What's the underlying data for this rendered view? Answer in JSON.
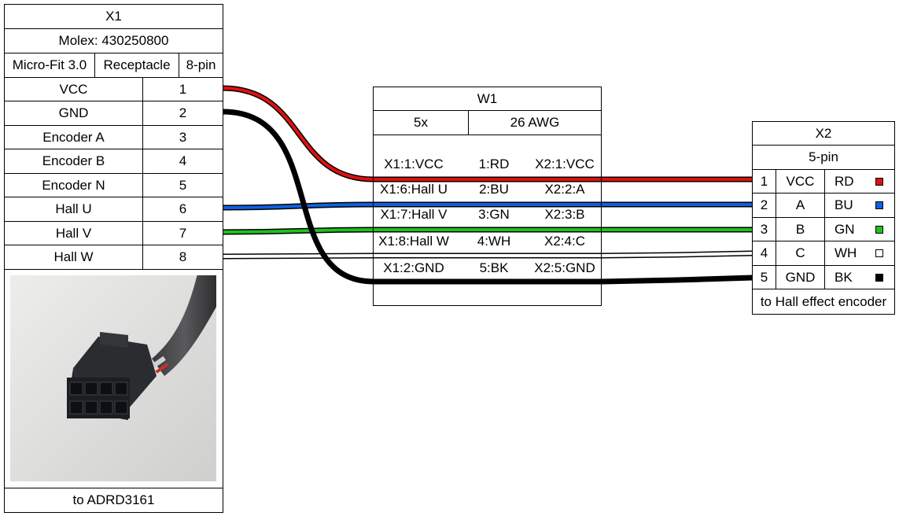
{
  "x1": {
    "title": "X1",
    "part": "Molex: 430250800",
    "series": "Micro-Fit 3.0",
    "type": "Receptacle",
    "pincount": "8-pin",
    "pins": [
      {
        "label": "VCC",
        "num": "1"
      },
      {
        "label": "GND",
        "num": "2"
      },
      {
        "label": "Encoder A",
        "num": "3"
      },
      {
        "label": "Encoder B",
        "num": "4"
      },
      {
        "label": "Encoder N",
        "num": "5"
      },
      {
        "label": "Hall U",
        "num": "6"
      },
      {
        "label": "Hall V",
        "num": "7"
      },
      {
        "label": "Hall W",
        "num": "8"
      }
    ],
    "note": "to ADRD3161"
  },
  "w1": {
    "title": "W1",
    "count": "5x",
    "gauge": "26 AWG",
    "wires": [
      {
        "from": "X1:1:VCC",
        "id": "1:RD",
        "to": "X2:1:VCC"
      },
      {
        "from": "X1:6:Hall U",
        "id": "2:BU",
        "to": "X2:2:A"
      },
      {
        "from": "X1:7:Hall V",
        "id": "3:GN",
        "to": "X2:3:B"
      },
      {
        "from": "X1:8:Hall W",
        "id": "4:WH",
        "to": "X2:4:C"
      },
      {
        "from": "X1:2:GND",
        "id": "5:BK",
        "to": "X2:5:GND"
      }
    ]
  },
  "x2": {
    "title": "X2",
    "pincount": "5-pin",
    "pins": [
      {
        "num": "1",
        "label": "VCC",
        "color_code": "RD",
        "color": "#e01010"
      },
      {
        "num": "2",
        "label": "A",
        "color_code": "BU",
        "color": "#1060e0"
      },
      {
        "num": "3",
        "label": "B",
        "color_code": "GN",
        "color": "#20c020"
      },
      {
        "num": "4",
        "label": "C",
        "color_code": "WH",
        "color": "#ffffff"
      },
      {
        "num": "5",
        "label": "GND",
        "color_code": "BK",
        "color": "#000000"
      }
    ],
    "note": "to Hall effect encoder"
  },
  "colors": {
    "red": "#e01010",
    "blue": "#1060e0",
    "green": "#20c020",
    "white": "#ffffff",
    "black": "#000000"
  }
}
